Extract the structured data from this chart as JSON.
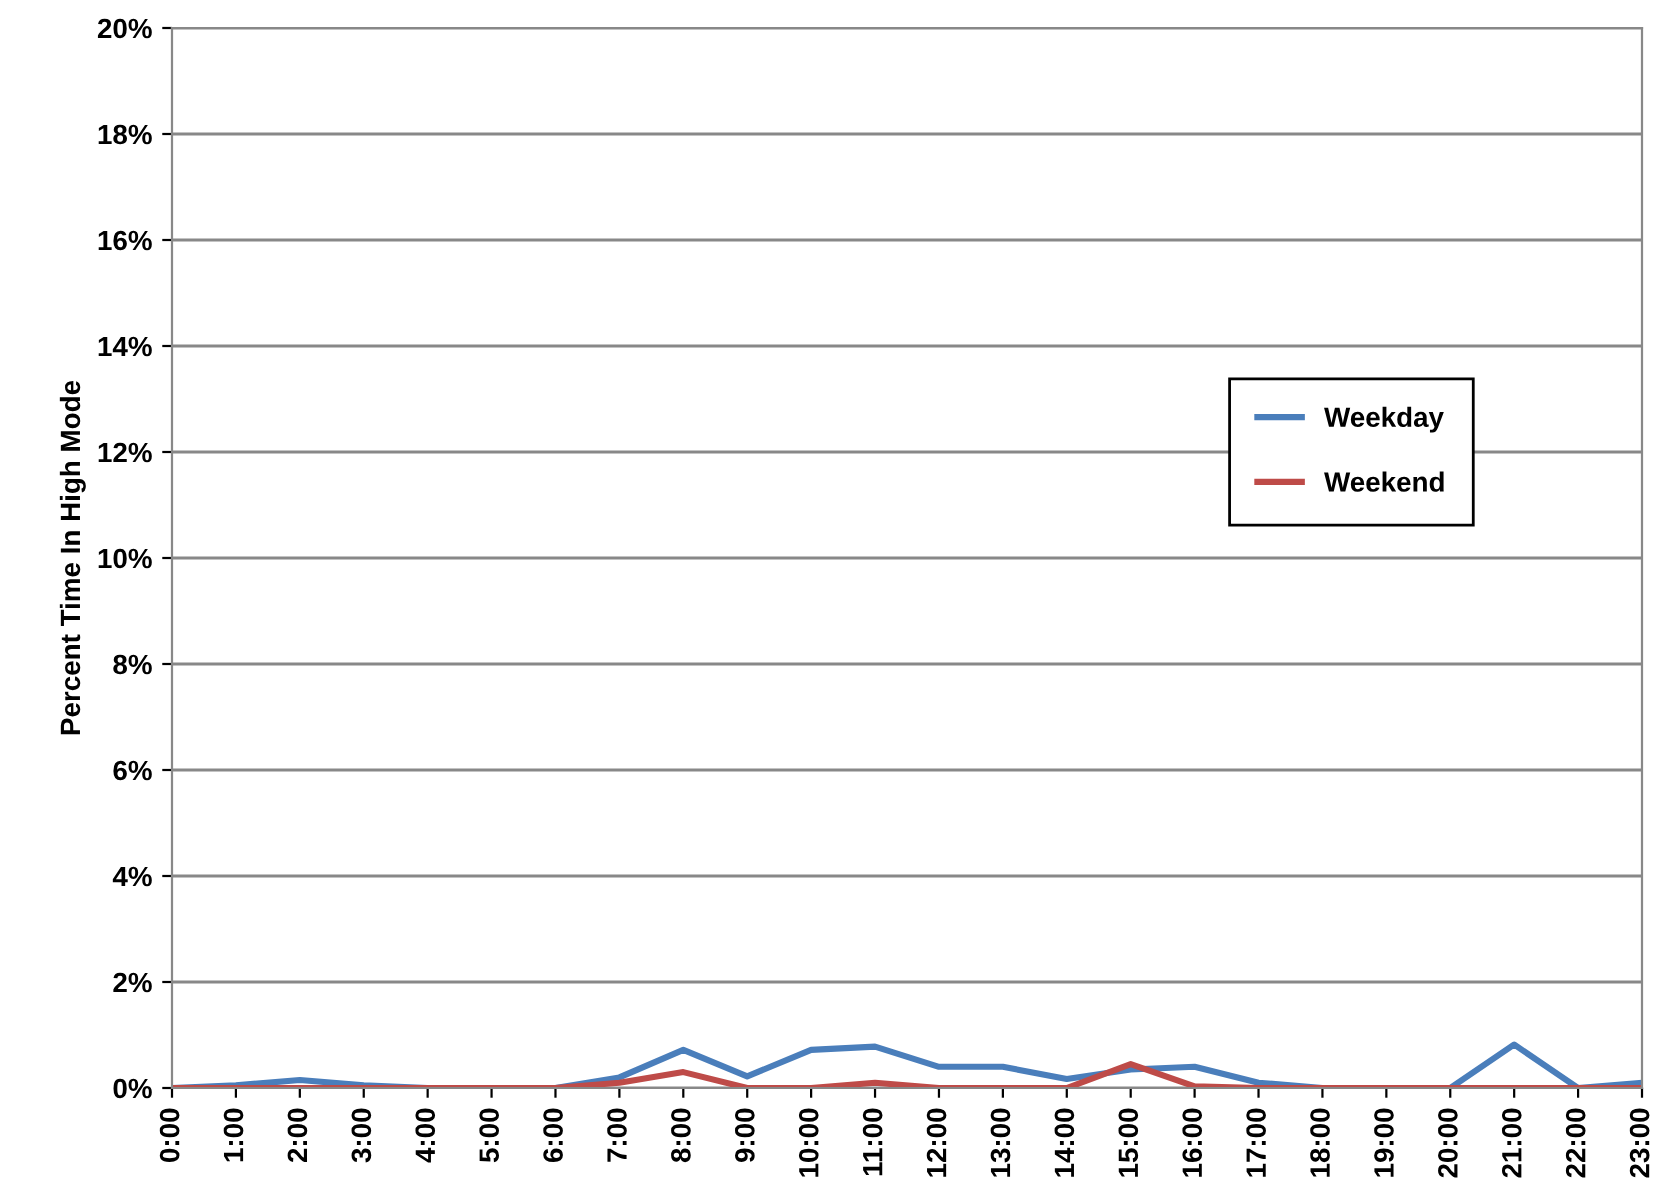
{
  "chart_data": {
    "type": "line",
    "ylabel": "Percent Time In High Mode",
    "categories": [
      "0:00",
      "1:00",
      "2:00",
      "3:00",
      "4:00",
      "5:00",
      "6:00",
      "7:00",
      "8:00",
      "9:00",
      "10:00",
      "11:00",
      "12:00",
      "13:00",
      "14:00",
      "15:00",
      "16:00",
      "17:00",
      "18:00",
      "19:00",
      "20:00",
      "21:00",
      "22:00",
      "23:00"
    ],
    "series": [
      {
        "name": "Weekday",
        "color": "#4a7ebb",
        "values": [
          0,
          0.05,
          0.15,
          0.05,
          0,
          0,
          0,
          0.2,
          0.72,
          0.22,
          0.72,
          0.78,
          0.4,
          0.4,
          0.17,
          0.35,
          0.4,
          0.1,
          0,
          0,
          0,
          0.82,
          0,
          0.1
        ]
      },
      {
        "name": "Weekend",
        "color": "#be4b48",
        "values": [
          0,
          0,
          0,
          0,
          0,
          0,
          0,
          0.1,
          0.3,
          0,
          0,
          0.1,
          0,
          0,
          0,
          0.45,
          0.03,
          0,
          0,
          0,
          0,
          0,
          0,
          0
        ]
      }
    ],
    "ylim": [
      0,
      20
    ],
    "yticks": [
      {
        "value": 0,
        "label": "0%"
      },
      {
        "value": 2,
        "label": "2%"
      },
      {
        "value": 4,
        "label": "4%"
      },
      {
        "value": 6,
        "label": "6%"
      },
      {
        "value": 8,
        "label": "8%"
      },
      {
        "value": 10,
        "label": "10%"
      },
      {
        "value": 12,
        "label": "12%"
      },
      {
        "value": 14,
        "label": "14%"
      },
      {
        "value": 16,
        "label": "16%"
      },
      {
        "value": 18,
        "label": "18%"
      },
      {
        "value": 20,
        "label": "20%"
      }
    ],
    "grid": "y",
    "legend": "right",
    "marker": "none",
    "line_style": "solid"
  }
}
